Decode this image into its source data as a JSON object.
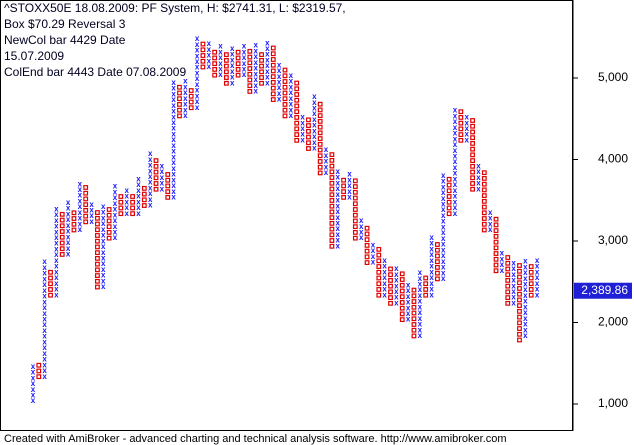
{
  "chart_data": {
    "type": "pointfigure",
    "title_lines": [
      "^STOXX50E 18.08.2009: PF System, H: $2741.31, L: $2319.57,",
      "Box $70.29 Reversal 3",
      "NewCol bar 4429 Date",
      "15.07.2009",
      "ColEnd bar 4443 Date 07.08.2009"
    ],
    "box_size": 70.29,
    "x_color": "#1a1aff",
    "o_color": "#e00000",
    "ylim": [
      681,
      5957
    ],
    "yticks": [
      {
        "value": 1000,
        "label": "1,000"
      },
      {
        "value": 2000,
        "label": "2,000"
      },
      {
        "value": 3000,
        "label": "3,000"
      },
      {
        "value": 4000,
        "label": "4,000"
      },
      {
        "value": 5000,
        "label": "5,000"
      }
    ],
    "last_price": {
      "value": 2389.86,
      "label": "2,389.86"
    },
    "footer": "Created with AmiBroker - advanced charting and technical analysis software. http://www.amibroker.com",
    "columns": [
      {
        "kind": "X",
        "low": 1000,
        "high": 1450
      },
      {
        "kind": "O",
        "low": 1300,
        "high": 1450
      },
      {
        "kind": "X",
        "low": 1300,
        "high": 2700
      },
      {
        "kind": "O",
        "low": 2300,
        "high": 2600
      },
      {
        "kind": "X",
        "low": 2300,
        "high": 3350
      },
      {
        "kind": "O",
        "low": 2800,
        "high": 3280
      },
      {
        "kind": "X",
        "low": 2800,
        "high": 3400
      },
      {
        "kind": "O",
        "low": 3100,
        "high": 3330
      },
      {
        "kind": "X",
        "low": 3100,
        "high": 3680
      },
      {
        "kind": "O",
        "low": 3200,
        "high": 3610
      },
      {
        "kind": "X",
        "low": 3200,
        "high": 3400
      },
      {
        "kind": "O",
        "low": 2400,
        "high": 3330
      },
      {
        "kind": "X",
        "low": 2400,
        "high": 3400
      },
      {
        "kind": "O",
        "low": 3000,
        "high": 3330
      },
      {
        "kind": "X",
        "low": 3000,
        "high": 3600
      },
      {
        "kind": "O",
        "low": 3300,
        "high": 3530
      },
      {
        "kind": "X",
        "low": 3300,
        "high": 3600
      },
      {
        "kind": "O",
        "low": 3300,
        "high": 3530
      },
      {
        "kind": "X",
        "low": 3300,
        "high": 3700
      },
      {
        "kind": "O",
        "low": 3400,
        "high": 3630
      },
      {
        "kind": "X",
        "low": 3400,
        "high": 4000
      },
      {
        "kind": "O",
        "low": 3600,
        "high": 3930
      },
      {
        "kind": "X",
        "low": 3600,
        "high": 3850
      },
      {
        "kind": "O",
        "low": 3500,
        "high": 3780
      },
      {
        "kind": "X",
        "low": 3500,
        "high": 4900
      },
      {
        "kind": "O",
        "low": 4500,
        "high": 4830
      },
      {
        "kind": "X",
        "low": 4500,
        "high": 4900
      },
      {
        "kind": "O",
        "low": 4600,
        "high": 4830
      },
      {
        "kind": "X",
        "low": 4600,
        "high": 5450
      },
      {
        "kind": "O",
        "low": 5100,
        "high": 5380
      },
      {
        "kind": "X",
        "low": 5100,
        "high": 5350
      },
      {
        "kind": "O",
        "low": 5000,
        "high": 5280
      },
      {
        "kind": "X",
        "low": 5000,
        "high": 5350
      },
      {
        "kind": "O",
        "low": 4900,
        "high": 5280
      },
      {
        "kind": "X",
        "low": 4900,
        "high": 5350
      },
      {
        "kind": "O",
        "low": 5000,
        "high": 5280
      },
      {
        "kind": "X",
        "low": 5000,
        "high": 5350
      },
      {
        "kind": "O",
        "low": 4800,
        "high": 5280
      },
      {
        "kind": "X",
        "low": 4800,
        "high": 5350
      },
      {
        "kind": "O",
        "low": 4900,
        "high": 5280
      },
      {
        "kind": "X",
        "low": 4900,
        "high": 5400
      },
      {
        "kind": "O",
        "low": 4700,
        "high": 5330
      },
      {
        "kind": "X",
        "low": 4700,
        "high": 5100
      },
      {
        "kind": "O",
        "low": 4500,
        "high": 5030
      },
      {
        "kind": "X",
        "low": 4500,
        "high": 5000
      },
      {
        "kind": "O",
        "low": 4200,
        "high": 4930
      },
      {
        "kind": "X",
        "low": 4200,
        "high": 4500
      },
      {
        "kind": "O",
        "low": 4100,
        "high": 4430
      },
      {
        "kind": "X",
        "low": 4100,
        "high": 4700
      },
      {
        "kind": "O",
        "low": 3800,
        "high": 4630
      },
      {
        "kind": "X",
        "low": 3800,
        "high": 4100
      },
      {
        "kind": "O",
        "low": 2900,
        "high": 4030
      },
      {
        "kind": "X",
        "low": 2900,
        "high": 3800
      },
      {
        "kind": "O",
        "low": 3500,
        "high": 3730
      },
      {
        "kind": "X",
        "low": 3500,
        "high": 3800
      },
      {
        "kind": "O",
        "low": 3000,
        "high": 3730
      },
      {
        "kind": "X",
        "low": 3000,
        "high": 3200
      },
      {
        "kind": "O",
        "low": 2700,
        "high": 3130
      },
      {
        "kind": "X",
        "low": 2700,
        "high": 2900
      },
      {
        "kind": "O",
        "low": 2300,
        "high": 2830
      },
      {
        "kind": "X",
        "low": 2300,
        "high": 2700
      },
      {
        "kind": "O",
        "low": 2200,
        "high": 2630
      },
      {
        "kind": "X",
        "low": 2200,
        "high": 2600
      },
      {
        "kind": "O",
        "low": 2000,
        "high": 2530
      },
      {
        "kind": "X",
        "low": 2000,
        "high": 2400
      },
      {
        "kind": "O",
        "low": 1800,
        "high": 2330
      },
      {
        "kind": "X",
        "low": 1800,
        "high": 2600
      },
      {
        "kind": "O",
        "low": 2300,
        "high": 2530
      },
      {
        "kind": "X",
        "low": 2300,
        "high": 3000
      },
      {
        "kind": "O",
        "low": 2500,
        "high": 2930
      },
      {
        "kind": "X",
        "low": 2500,
        "high": 3800
      },
      {
        "kind": "O",
        "low": 3300,
        "high": 3730
      },
      {
        "kind": "X",
        "low": 3300,
        "high": 4600
      },
      {
        "kind": "O",
        "low": 4200,
        "high": 4530
      },
      {
        "kind": "X",
        "low": 4200,
        "high": 4500
      },
      {
        "kind": "O",
        "low": 3600,
        "high": 4430
      },
      {
        "kind": "X",
        "low": 3600,
        "high": 3900
      },
      {
        "kind": "O",
        "low": 3100,
        "high": 3830
      },
      {
        "kind": "X",
        "low": 3100,
        "high": 3300
      },
      {
        "kind": "O",
        "low": 2600,
        "high": 3230
      },
      {
        "kind": "X",
        "low": 2600,
        "high": 2800
      },
      {
        "kind": "O",
        "low": 2200,
        "high": 2730
      },
      {
        "kind": "X",
        "low": 2200,
        "high": 2700
      },
      {
        "kind": "O",
        "low": 1750,
        "high": 2630
      },
      {
        "kind": "X",
        "low": 1800,
        "high": 2700
      },
      {
        "kind": "O",
        "low": 2300,
        "high": 2630
      },
      {
        "kind": "X",
        "low": 2300,
        "high": 2750
      }
    ]
  }
}
